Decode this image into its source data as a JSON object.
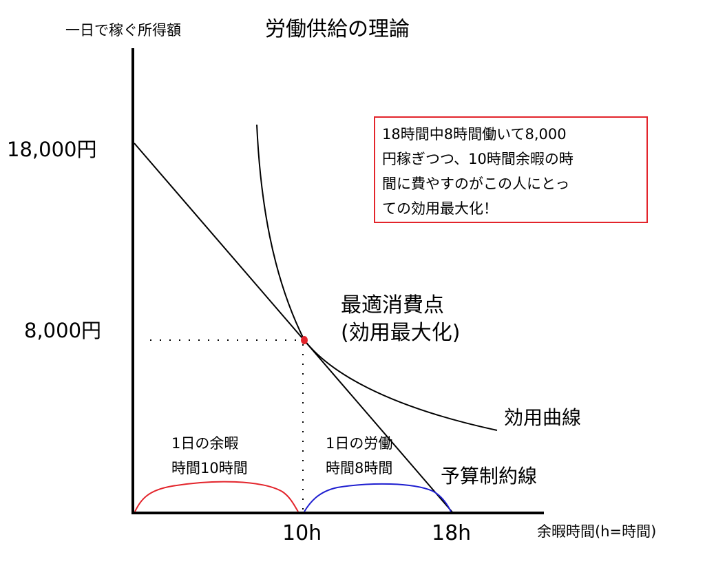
{
  "title": "労働供給の理論",
  "axes": {
    "y_label": "一日で稼ぐ所得額",
    "x_label": "余暇時間(h=時間)",
    "y_ticks": [
      "18,000円",
      "8,000円"
    ],
    "x_ticks": [
      "10h",
      "18h"
    ]
  },
  "labels": {
    "optimum": [
      "最適消費点",
      "(効用最大化)"
    ],
    "utility_curve": "効用曲線",
    "budget_line": "予算制約線",
    "leisure": [
      "1日の余暇",
      "時間10時間"
    ],
    "labor": [
      "1日の労働",
      "時間8時間"
    ]
  },
  "note": {
    "lines": [
      "18時間中8時間働いて8,000",
      "円稼ぎつつ、10時間余暇の時",
      "間に費やすのがこの人にとっ",
      "ての効用最大化！"
    ],
    "border_color": "#e3242b"
  },
  "colors": {
    "optimum_point": "#e3242b",
    "leisure_arc": "#e3242b",
    "labor_arc": "#1f1fd0",
    "lines": "#000000"
  }
}
